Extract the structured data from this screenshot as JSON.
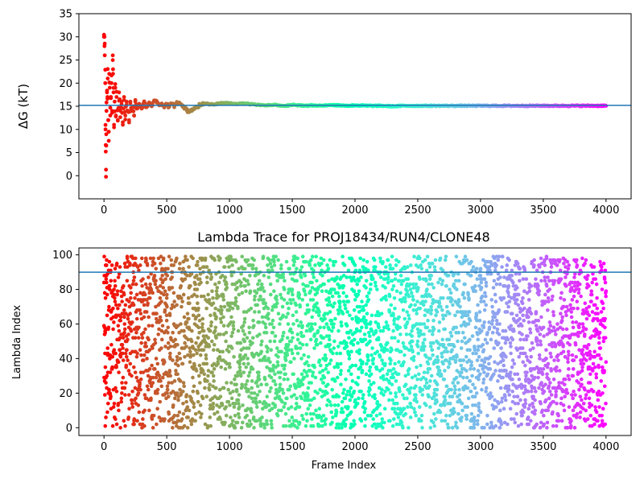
{
  "chart_data": [
    {
      "type": "scatter",
      "title": "",
      "xlabel": "",
      "ylabel": "ΔG (kT)",
      "xlim": [
        -200,
        4200
      ],
      "ylim": [
        -5,
        35
      ],
      "xticks": [
        0,
        500,
        1000,
        1500,
        2000,
        2500,
        3000,
        3500,
        4000
      ],
      "yticks": [
        0,
        5,
        10,
        15,
        20,
        25,
        30,
        35
      ],
      "colormap": "rainbow-reversed (red at frame 0, purple at frame 4000)",
      "reference_line": {
        "orientation": "horizontal",
        "y": 15.2,
        "color": "#1f77b4"
      },
      "series": [
        {
          "points": [
            {
              "x": 0,
              "y": 30
            },
            {
              "x": 4,
              "y": 30
            },
            {
              "x": 6,
              "y": 26
            },
            {
              "x": 10,
              "y": 20
            },
            {
              "x": 12,
              "y": 10
            },
            {
              "x": 14,
              "y": 5.2
            },
            {
              "x": 16,
              "y": 1.3
            },
            {
              "x": 18,
              "y": 6.5
            },
            {
              "x": 20,
              "y": 14
            },
            {
              "x": 24,
              "y": 18
            },
            {
              "x": 28,
              "y": 17
            },
            {
              "x": 30,
              "y": 21
            },
            {
              "x": 34,
              "y": 12
            },
            {
              "x": 38,
              "y": 9.5
            },
            {
              "x": 42,
              "y": 22
            },
            {
              "x": 46,
              "y": 19
            },
            {
              "x": 50,
              "y": 13
            },
            {
              "x": 55,
              "y": 17
            },
            {
              "x": 60,
              "y": 20
            },
            {
              "x": 65,
              "y": 14
            },
            {
              "x": 70,
              "y": 26
            },
            {
              "x": 72,
              "y": 23
            },
            {
              "x": 76,
              "y": 18
            },
            {
              "x": 80,
              "y": 11
            },
            {
              "x": 85,
              "y": 16
            },
            {
              "x": 90,
              "y": 19
            },
            {
              "x": 95,
              "y": 13
            },
            {
              "x": 100,
              "y": 17
            },
            {
              "x": 110,
              "y": 12
            },
            {
              "x": 120,
              "y": 18
            },
            {
              "x": 130,
              "y": 14
            },
            {
              "x": 140,
              "y": 16
            },
            {
              "x": 150,
              "y": 11
            },
            {
              "x": 160,
              "y": 17
            },
            {
              "x": 170,
              "y": 13
            },
            {
              "x": 180,
              "y": 16
            },
            {
              "x": 190,
              "y": 14
            },
            {
              "x": 200,
              "y": 12
            },
            {
              "x": 210,
              "y": 16
            },
            {
              "x": 220,
              "y": 14
            },
            {
              "x": 230,
              "y": 15
            },
            {
              "x": 240,
              "y": 13
            },
            {
              "x": 250,
              "y": 16
            },
            {
              "x": 260,
              "y": 14.5
            },
            {
              "x": 280,
              "y": 15.5
            },
            {
              "x": 300,
              "y": 14.5
            },
            {
              "x": 320,
              "y": 15.8
            },
            {
              "x": 340,
              "y": 14.8
            },
            {
              "x": 360,
              "y": 15.5
            },
            {
              "x": 380,
              "y": 15
            },
            {
              "x": 400,
              "y": 16.2
            },
            {
              "x": 420,
              "y": 15.8
            },
            {
              "x": 440,
              "y": 15.2
            },
            {
              "x": 460,
              "y": 15.6
            },
            {
              "x": 480,
              "y": 15
            },
            {
              "x": 500,
              "y": 15.4
            },
            {
              "x": 520,
              "y": 14.9
            },
            {
              "x": 540,
              "y": 15.5
            },
            {
              "x": 560,
              "y": 15.1
            },
            {
              "x": 580,
              "y": 15.7
            },
            {
              "x": 600,
              "y": 15.8
            },
            {
              "x": 620,
              "y": 15.2
            },
            {
              "x": 640,
              "y": 14.6
            },
            {
              "x": 660,
              "y": 14.1
            },
            {
              "x": 680,
              "y": 13.9
            },
            {
              "x": 700,
              "y": 14
            },
            {
              "x": 720,
              "y": 14.4
            },
            {
              "x": 740,
              "y": 14.8
            },
            {
              "x": 760,
              "y": 15.2
            },
            {
              "x": 780,
              "y": 15.5
            },
            {
              "x": 800,
              "y": 15.6
            },
            {
              "x": 850,
              "y": 15.4
            },
            {
              "x": 900,
              "y": 15.5
            },
            {
              "x": 950,
              "y": 15.7
            },
            {
              "x": 1000,
              "y": 15.6
            },
            {
              "x": 1050,
              "y": 15.5
            },
            {
              "x": 1100,
              "y": 15.6
            },
            {
              "x": 1150,
              "y": 15.5
            },
            {
              "x": 1200,
              "y": 15.4
            },
            {
              "x": 1250,
              "y": 15.3
            },
            {
              "x": 1300,
              "y": 15.2
            },
            {
              "x": 1350,
              "y": 15.3
            },
            {
              "x": 1400,
              "y": 15.2
            },
            {
              "x": 1450,
              "y": 15.1
            },
            {
              "x": 1500,
              "y": 15.3
            },
            {
              "x": 1550,
              "y": 15.2
            },
            {
              "x": 1600,
              "y": 15.1
            },
            {
              "x": 1650,
              "y": 15.2
            },
            {
              "x": 1700,
              "y": 15.1
            },
            {
              "x": 1750,
              "y": 15.2
            },
            {
              "x": 1800,
              "y": 15.3
            },
            {
              "x": 1850,
              "y": 15.2
            },
            {
              "x": 1900,
              "y": 15.2
            },
            {
              "x": 1950,
              "y": 15.1
            },
            {
              "x": 2000,
              "y": 15.2
            },
            {
              "x": 2100,
              "y": 15.1
            },
            {
              "x": 2200,
              "y": 15.1
            },
            {
              "x": 2300,
              "y": 15
            },
            {
              "x": 2400,
              "y": 15.1
            },
            {
              "x": 2500,
              "y": 15.1
            },
            {
              "x": 2600,
              "y": 15.1
            },
            {
              "x": 2700,
              "y": 15.1
            },
            {
              "x": 2800,
              "y": 15.1
            },
            {
              "x": 2900,
              "y": 15.1
            },
            {
              "x": 3000,
              "y": 15.1
            },
            {
              "x": 3100,
              "y": 15.1
            },
            {
              "x": 3200,
              "y": 15.1
            },
            {
              "x": 3300,
              "y": 15.1
            },
            {
              "x": 3400,
              "y": 15.1
            },
            {
              "x": 3500,
              "y": 15.1
            },
            {
              "x": 3600,
              "y": 15.1
            },
            {
              "x": 3700,
              "y": 15.1
            },
            {
              "x": 3800,
              "y": 15.1
            },
            {
              "x": 3900,
              "y": 15.1
            },
            {
              "x": 4000,
              "y": 15.1
            }
          ]
        }
      ]
    },
    {
      "type": "scatter",
      "title": "Lambda Trace for PROJ18434/RUN4/CLONE48",
      "xlabel": "Frame Index",
      "ylabel": "Lambda Index",
      "xlim": [
        -200,
        4200
      ],
      "ylim": [
        -4.5,
        104
      ],
      "xticks": [
        0,
        500,
        1000,
        1500,
        2000,
        2500,
        3000,
        3500,
        4000
      ],
      "yticks": [
        0,
        20,
        40,
        60,
        80,
        100
      ],
      "colormap": "rainbow-reversed (red at frame 0, purple at frame 4000)",
      "reference_line": {
        "orientation": "horizontal",
        "y": 90,
        "color": "#1f77b4"
      },
      "series": [
        {
          "description": "about 4000 frames, lambda index spread uniformly between 0 and 99",
          "frame_range": [
            0,
            4000
          ],
          "lambda_range": [
            0,
            99
          ],
          "points_count": 4000,
          "sample_points": [
            {
              "x": 0,
              "y": 84
            },
            {
              "x": 5,
              "y": 27
            },
            {
              "x": 10,
              "y": 55
            },
            {
              "x": 15,
              "y": 6
            },
            {
              "x": 20,
              "y": 94
            },
            {
              "x": 30,
              "y": 42
            },
            {
              "x": 40,
              "y": 70
            },
            {
              "x": 50,
              "y": 19
            },
            {
              "x": 500,
              "y": 62
            },
            {
              "x": 1000,
              "y": 35
            },
            {
              "x": 1500,
              "y": 80
            },
            {
              "x": 2000,
              "y": 12
            },
            {
              "x": 2500,
              "y": 57
            },
            {
              "x": 3000,
              "y": 88
            },
            {
              "x": 3500,
              "y": 24
            },
            {
              "x": 4000,
              "y": 38
            }
          ]
        }
      ]
    }
  ]
}
